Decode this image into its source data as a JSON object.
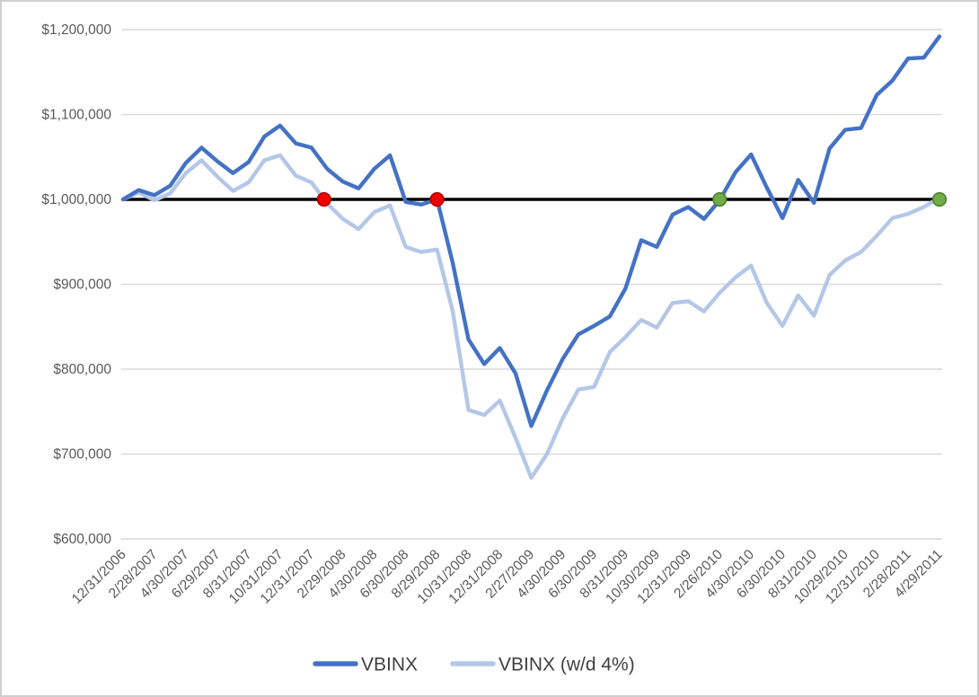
{
  "chart_data": {
    "type": "line",
    "title": "",
    "xlabel": "",
    "ylabel": "",
    "ylim": [
      600000,
      1200000
    ],
    "grid": true,
    "legend_position": "bottom",
    "gridline_color": "#d9d9d9",
    "axis_label_color": "#595959",
    "legend_text_color": "#404040",
    "y_tick_labels": [
      "$600,000",
      "$700,000",
      "$800,000",
      "$900,000",
      "$1,000,000",
      "$1,100,000",
      "$1,200,000"
    ],
    "x_tick_labels": [
      "12/31/2006",
      "2/28/2007",
      "4/30/2007",
      "6/29/2007",
      "8/31/2007",
      "10/31/2007",
      "12/31/2007",
      "2/29/2008",
      "4/30/2008",
      "6/30/2008",
      "8/29/2008",
      "10/31/2008",
      "12/31/2008",
      "2/27/2009",
      "4/30/2009",
      "6/30/2009",
      "8/31/2009",
      "10/30/2009",
      "12/31/2009",
      "2/26/2010",
      "4/30/2010",
      "6/30/2010",
      "8/31/2010",
      "10/29/2010",
      "12/31/2010",
      "2/28/2011",
      "4/29/2011"
    ],
    "x_tick_month_step": 2,
    "reference_line": {
      "value": 1000000,
      "color": "#000000"
    },
    "series": [
      {
        "name": "VBINX",
        "color": "#4472c4",
        "values": [
          1000000,
          1011000,
          1005000,
          1016000,
          1043000,
          1061000,
          1045000,
          1031000,
          1044000,
          1074000,
          1087000,
          1066000,
          1061000,
          1036000,
          1021000,
          1013000,
          1036000,
          1052000,
          997000,
          994000,
          1000000,
          925000,
          835000,
          806000,
          825000,
          795000,
          733000,
          775000,
          812000,
          841000,
          851000,
          862000,
          895000,
          952000,
          944000,
          982000,
          991000,
          977000,
          999000,
          1032000,
          1053000,
          1014000,
          978000,
          1023000,
          996000,
          1060000,
          1082000,
          1084000,
          1123000,
          1140000,
          1166000,
          1167000,
          1192000
        ]
      },
      {
        "name": "VBINX (w/d 4%)",
        "color": "#b4c7e7",
        "values": [
          1000000,
          1008000,
          999000,
          1007000,
          1031000,
          1046000,
          1027000,
          1010000,
          1020000,
          1046000,
          1052000,
          1028000,
          1020000,
          995000,
          977000,
          965000,
          985000,
          993000,
          944000,
          938000,
          941000,
          868000,
          752000,
          746000,
          763000,
          719000,
          672000,
          700000,
          742000,
          776000,
          779000,
          820000,
          838000,
          858000,
          849000,
          878000,
          880000,
          868000,
          890000,
          908000,
          922000,
          878000,
          851000,
          887000,
          863000,
          911000,
          928000,
          938000,
          957000,
          978000,
          983000,
          991000,
          1002000
        ]
      }
    ],
    "markers": [
      {
        "series": "VBINX (w/d 4%)",
        "month": 12.8,
        "value": 1000000,
        "fill": "#f00000",
        "stroke": "#b30000",
        "name": "crossing-marker-red-1"
      },
      {
        "series": "VBINX",
        "month": 20,
        "value": 1000000,
        "fill": "#f00000",
        "stroke": "#b30000",
        "name": "crossing-marker-red-2"
      },
      {
        "series": "VBINX",
        "month": 38,
        "value": 1000000,
        "fill": "#70ad47",
        "stroke": "#507e32",
        "name": "crossing-marker-green-1"
      },
      {
        "series": "VBINX (w/d 4%)",
        "month": 52,
        "value": 1000000,
        "fill": "#70ad47",
        "stroke": "#507e32",
        "name": "crossing-marker-green-2"
      }
    ],
    "legend": [
      {
        "label": "VBINX",
        "color": "#4472c4"
      },
      {
        "label": "VBINX (w/d 4%)",
        "color": "#b4c7e7"
      }
    ]
  }
}
